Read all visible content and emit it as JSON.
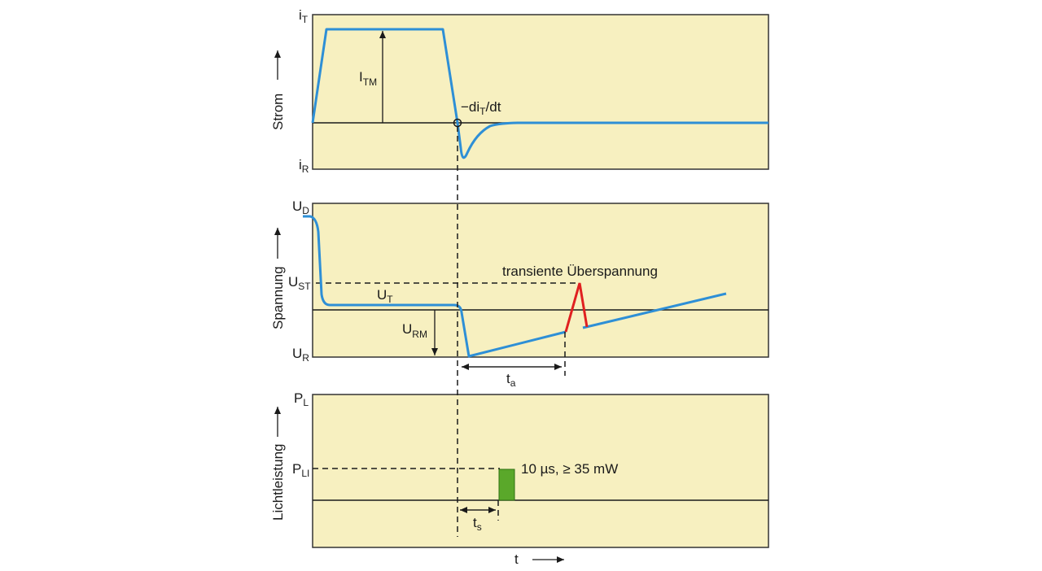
{
  "colors": {
    "panel_fill": "#f7f0c0",
    "current_curve": "#2e8fd6",
    "overvoltage_spike": "#e02020",
    "light_pulse": "#5aa82a"
  },
  "panels": {
    "current": {
      "axis_label": "Strom",
      "top_label": {
        "main": "i",
        "sub": "T"
      },
      "bottom_label": {
        "main": "i",
        "sub": "R"
      },
      "peak_label": {
        "main": "I",
        "sub": "TM"
      },
      "slope_label": {
        "pre": "−di",
        "sub": "T",
        "post": "/dt"
      }
    },
    "voltage": {
      "axis_label": "Spannung",
      "top_label": {
        "main": "U",
        "sub": "D"
      },
      "st_label": {
        "main": "U",
        "sub": "ST"
      },
      "bottom_label": {
        "main": "U",
        "sub": "R"
      },
      "on_state_label": {
        "main": "U",
        "sub": "T"
      },
      "reverse_label": {
        "main": "U",
        "sub": "RM"
      },
      "transient_label": "transiente Überspannung",
      "interval_label": {
        "main": "t",
        "sub": "a"
      }
    },
    "light": {
      "axis_label": "Lichtleistung",
      "top_label": {
        "main": "P",
        "sub": "L"
      },
      "level_label": {
        "main": "P",
        "sub": "LI"
      },
      "pulse_label": "10 µs, ≥ 35 mW",
      "delay_label": {
        "main": "t",
        "sub": "s"
      }
    }
  },
  "time_axis_label": "t"
}
